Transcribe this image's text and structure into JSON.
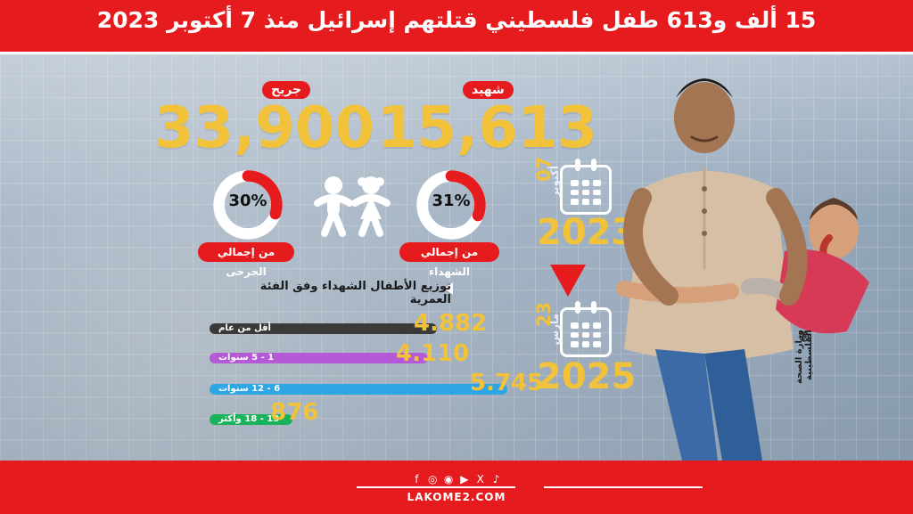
{
  "header": {
    "title": "15 ألف و613 طفل فلسطيني قتلتهم إسرائيل منذ 7 أكتوبر 2023"
  },
  "stats": {
    "killed": {
      "label": "شهيد",
      "value": "15,613",
      "percent_text": "31%",
      "caption": "من إجمالي الشهداء",
      "percent": 0.31
    },
    "injured": {
      "label": "جريح",
      "value": "33,900",
      "percent_text": "30%",
      "caption": "من إجمالي الجرحى",
      "percent": 0.3
    }
  },
  "timeline": {
    "start": {
      "day": "07",
      "month": "أكتوبر",
      "year": "2023"
    },
    "end": {
      "day": "23",
      "month": "مارس",
      "year": "2025"
    }
  },
  "distribution": {
    "title": "توزيع الأطفال الشهداء وفق الفئة العمرية",
    "bars": [
      {
        "label": "أقل من عام",
        "value_text": "4.882",
        "value": 4882,
        "color": "#3a3a3a"
      },
      {
        "label": "1 - 5 سنوات",
        "value_text": "4.110",
        "value": 4110,
        "color": "#b45ad6"
      },
      {
        "label": "6 - 12 سنوات",
        "value_text": "5.745",
        "value": 5745,
        "color": "#2ea6e6"
      },
      {
        "label": "13 - 18 وأكثر",
        "value_text": "876",
        "value": 876,
        "color": "#19b35b"
      }
    ]
  },
  "source": {
    "text": "وزارة الصحة الفلسطينية"
  },
  "footer": {
    "social_icons": [
      "facebook-icon",
      "instagram-icon",
      "whatsapp-icon",
      "youtube-icon",
      "x-icon",
      "tiktok-icon"
    ],
    "site": "LAKOME2.COM"
  },
  "colors": {
    "red": "#e61b1e",
    "yellow": "#f2c23a"
  }
}
